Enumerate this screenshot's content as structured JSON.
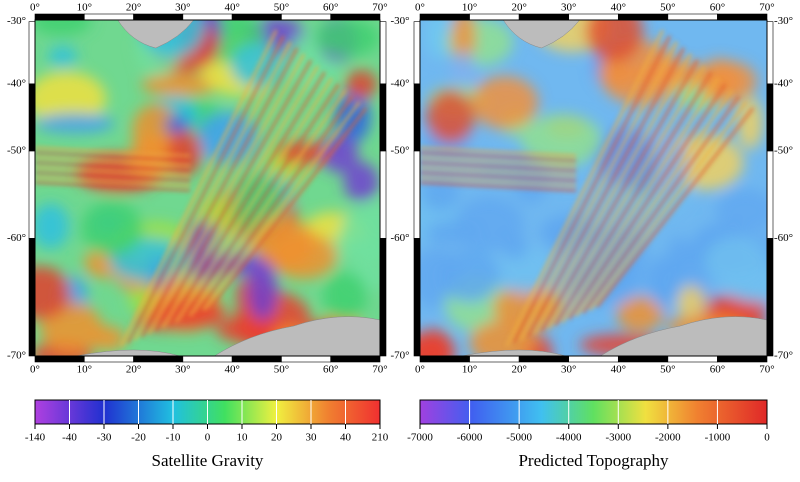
{
  "lon_labels": [
    "0°",
    "10°",
    "20°",
    "30°",
    "40°",
    "50°",
    "60°",
    "70°"
  ],
  "lat_labels": [
    "-30°",
    "-40°",
    "-50°",
    "-60°",
    "-70°"
  ],
  "panels": [
    {
      "title": "Satellite Gravity",
      "colorbar_labels": [
        "-140",
        "-40",
        "-30",
        "-20",
        "-10",
        "0",
        "10",
        "20",
        "30",
        "40",
        "210"
      ]
    },
    {
      "title": "Predicted Topography",
      "colorbar_labels": [
        "-7000",
        "-6000",
        "-5000",
        "-4000",
        "-3000",
        "-2000",
        "-1000",
        "0"
      ]
    }
  ]
}
